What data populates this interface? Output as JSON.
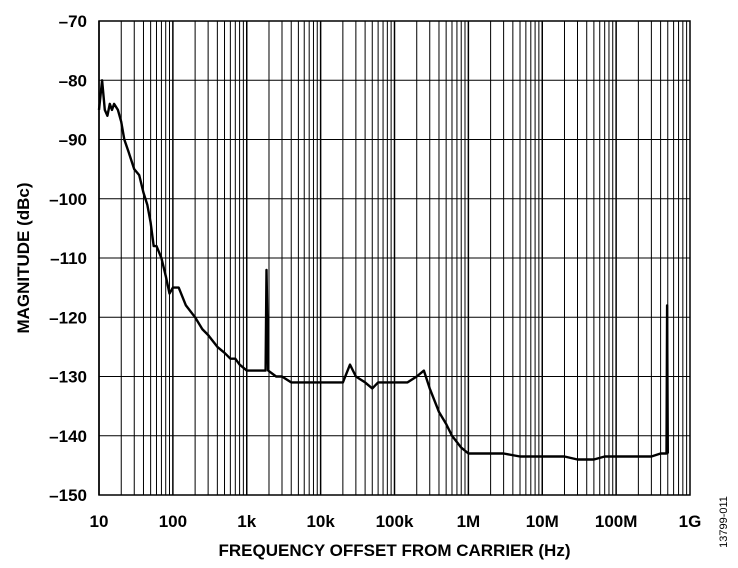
{
  "chart_data": {
    "type": "line",
    "xlabel": "FREQUENCY OFFSET FROM CARRIER (Hz)",
    "ylabel": "MAGNITUDE (dBc)",
    "figure_id": "13799-011",
    "xscale": "log",
    "xlim": [
      10,
      1000000000
    ],
    "ylim": [
      -150,
      -70
    ],
    "grid": true,
    "x_ticks": [
      {
        "value": 10,
        "label": "10"
      },
      {
        "value": 100,
        "label": "100"
      },
      {
        "value": 1000,
        "label": "1k"
      },
      {
        "value": 10000,
        "label": "10k"
      },
      {
        "value": 100000,
        "label": "100k"
      },
      {
        "value": 1000000,
        "label": "1M"
      },
      {
        "value": 10000000,
        "label": "10M"
      },
      {
        "value": 100000000,
        "label": "100M"
      },
      {
        "value": 1000000000,
        "label": "1G"
      }
    ],
    "y_ticks": [
      {
        "value": -70,
        "label": "–70"
      },
      {
        "value": -80,
        "label": "–80"
      },
      {
        "value": -90,
        "label": "–90"
      },
      {
        "value": -100,
        "label": "–100"
      },
      {
        "value": -110,
        "label": "–110"
      },
      {
        "value": -120,
        "label": "–120"
      },
      {
        "value": -130,
        "label": "–130"
      },
      {
        "value": -140,
        "label": "–140"
      },
      {
        "value": -150,
        "label": "–150"
      }
    ],
    "series": [
      {
        "color": "#000000",
        "points": [
          [
            10,
            -85
          ],
          [
            11,
            -80
          ],
          [
            12,
            -85
          ],
          [
            13,
            -86
          ],
          [
            14,
            -84
          ],
          [
            15,
            -85
          ],
          [
            16,
            -84
          ],
          [
            18,
            -85
          ],
          [
            20,
            -87
          ],
          [
            22,
            -90
          ],
          [
            25,
            -92
          ],
          [
            30,
            -95
          ],
          [
            35,
            -96
          ],
          [
            40,
            -99
          ],
          [
            45,
            -101
          ],
          [
            50,
            -104
          ],
          [
            55,
            -108
          ],
          [
            60,
            -108
          ],
          [
            70,
            -110
          ],
          [
            80,
            -113
          ],
          [
            90,
            -116
          ],
          [
            100,
            -115
          ],
          [
            120,
            -115
          ],
          [
            150,
            -118
          ],
          [
            200,
            -120
          ],
          [
            250,
            -122
          ],
          [
            300,
            -123
          ],
          [
            400,
            -125
          ],
          [
            500,
            -126
          ],
          [
            600,
            -127
          ],
          [
            700,
            -127
          ],
          [
            800,
            -128
          ],
          [
            1000,
            -129
          ],
          [
            1300,
            -129
          ],
          [
            1600,
            -129
          ],
          [
            1800,
            -129
          ],
          [
            1850,
            -112
          ],
          [
            1950,
            -129
          ],
          [
            2500,
            -130
          ],
          [
            3000,
            -130
          ],
          [
            4000,
            -131
          ],
          [
            5000,
            -131
          ],
          [
            7000,
            -131
          ],
          [
            10000,
            -131
          ],
          [
            13000,
            -131
          ],
          [
            16000,
            -131
          ],
          [
            20000,
            -131
          ],
          [
            25000,
            -128
          ],
          [
            30000,
            -130
          ],
          [
            40000,
            -131
          ],
          [
            50000,
            -132
          ],
          [
            60000,
            -131
          ],
          [
            80000,
            -131
          ],
          [
            100000,
            -131
          ],
          [
            150000,
            -131
          ],
          [
            200000,
            -130
          ],
          [
            250000,
            -129
          ],
          [
            300000,
            -132
          ],
          [
            400000,
            -136
          ],
          [
            500000,
            -138
          ],
          [
            600000,
            -140
          ],
          [
            800000,
            -142
          ],
          [
            1000000,
            -143
          ],
          [
            1500000,
            -143
          ],
          [
            2000000,
            -143
          ],
          [
            3000000,
            -143
          ],
          [
            5000000,
            -143.5
          ],
          [
            7000000,
            -143.5
          ],
          [
            10000000,
            -143.5
          ],
          [
            20000000,
            -143.5
          ],
          [
            30000000,
            -144
          ],
          [
            50000000,
            -144
          ],
          [
            70000000,
            -143.5
          ],
          [
            100000000,
            -143.5
          ],
          [
            150000000,
            -143.5
          ],
          [
            200000000,
            -143.5
          ],
          [
            300000000,
            -143.5
          ],
          [
            400000000,
            -143
          ],
          [
            480000000,
            -143
          ],
          [
            490000000,
            -118
          ],
          [
            500000000,
            -143
          ]
        ]
      }
    ]
  }
}
